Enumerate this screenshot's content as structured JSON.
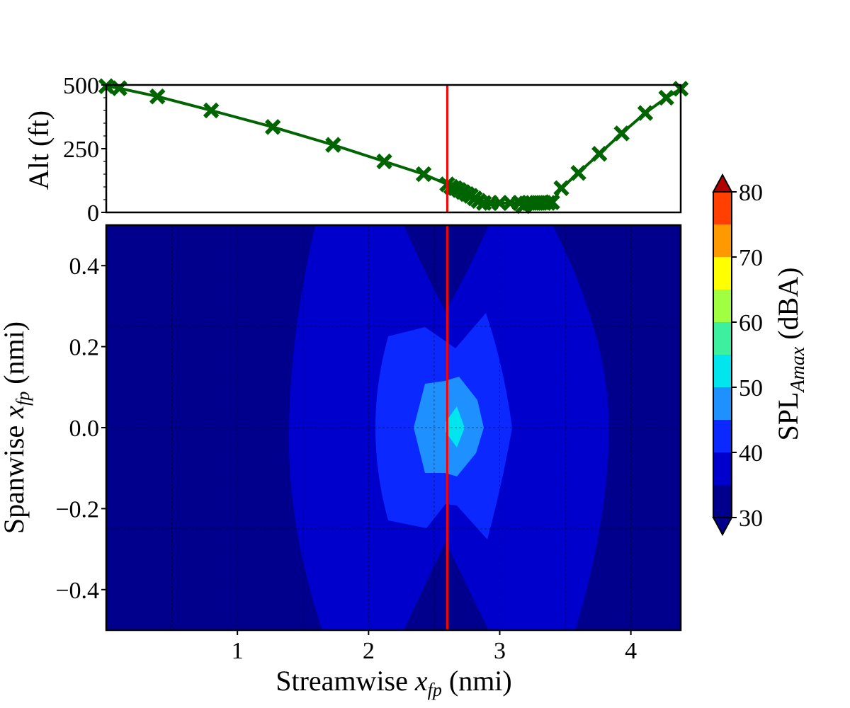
{
  "chart_data": [
    {
      "type": "line",
      "name": "altitude-profile",
      "ylabel": "Alt (ft)",
      "ylim": [
        0,
        500
      ],
      "yticks": [
        "0",
        "250",
        "500"
      ],
      "xlim": [
        0,
        4.38
      ],
      "line_color": "#006400",
      "marker": "x",
      "x": [
        0.0,
        0.1,
        0.39,
        0.8,
        1.27,
        1.73,
        2.12,
        2.42,
        2.6,
        2.63,
        2.66,
        2.69,
        2.72,
        2.75,
        2.78,
        2.81,
        2.84,
        2.88,
        2.93,
        3.0,
        3.08,
        3.15,
        3.18,
        3.2,
        3.22,
        3.25,
        3.28,
        3.31,
        3.34,
        3.37,
        3.4,
        3.47,
        3.6,
        3.76,
        3.93,
        4.11,
        4.27,
        4.38
      ],
      "y": [
        495,
        487,
        455,
        400,
        335,
        265,
        200,
        150,
        110,
        100,
        95,
        88,
        80,
        72,
        65,
        55,
        45,
        37,
        37,
        37,
        37,
        37,
        25,
        35,
        37,
        37,
        37,
        37,
        37,
        37,
        40,
        95,
        155,
        230,
        310,
        390,
        450,
        485
      ],
      "current_position_x": 2.6,
      "current_position_color": "#ff0000"
    },
    {
      "type": "heatmap",
      "name": "spl-contour",
      "xlabel_prefix": "Streamwise ",
      "xlabel_var": "x",
      "xlabel_sub": "fp",
      "xlabel_suffix": " (nmi)",
      "ylabel_prefix": "Spanwise ",
      "ylabel_var": "x",
      "ylabel_sub": "fp",
      "ylabel_suffix": " (nmi)",
      "xlim": [
        0,
        4.38
      ],
      "ylim": [
        -0.5,
        0.5
      ],
      "xticks": [
        {
          "value": 1,
          "label": "1"
        },
        {
          "value": 2,
          "label": "2"
        },
        {
          "value": 3,
          "label": "3"
        },
        {
          "value": 4,
          "label": "4"
        }
      ],
      "yticks": [
        {
          "value": 0.4,
          "label": "0.4"
        },
        {
          "value": 0.2,
          "label": "0.2"
        },
        {
          "value": 0.0,
          "label": "0.0"
        },
        {
          "value": -0.2,
          "label": "−0.2"
        },
        {
          "value": -0.4,
          "label": "−0.4"
        }
      ],
      "grid": true,
      "levels_dBA": [
        30,
        35,
        40,
        45,
        50,
        55,
        60,
        65,
        70,
        75,
        80
      ],
      "level_colors": [
        "#00008c",
        "#0000cd",
        "#0a28ff",
        "#1e90ff",
        "#00e5ee",
        "#3cf0a0",
        "#a0ff40",
        "#ffff00",
        "#ff9900",
        "#ff4000",
        "#b00000"
      ],
      "contour_regions": [
        {
          "level": "30-35 dBA",
          "color": "#00008c"
        },
        {
          "level": "35-40 dBA",
          "color": "#0000cd"
        },
        {
          "level": "40-45 dBA",
          "color": "#0a28ff"
        },
        {
          "level": "45-50 dBA",
          "color": "#1e90ff"
        },
        {
          "level": "50-55 dBA",
          "color": "#00e5ee"
        }
      ],
      "current_position_x": 2.6,
      "current_position_color": "#ff0000"
    }
  ],
  "colorbar": {
    "label_prefix": "SPL",
    "label_sub": "Amax",
    "label_suffix": " (dBA)",
    "ticks": [
      "80",
      "70",
      "60",
      "50",
      "40",
      "30"
    ]
  }
}
